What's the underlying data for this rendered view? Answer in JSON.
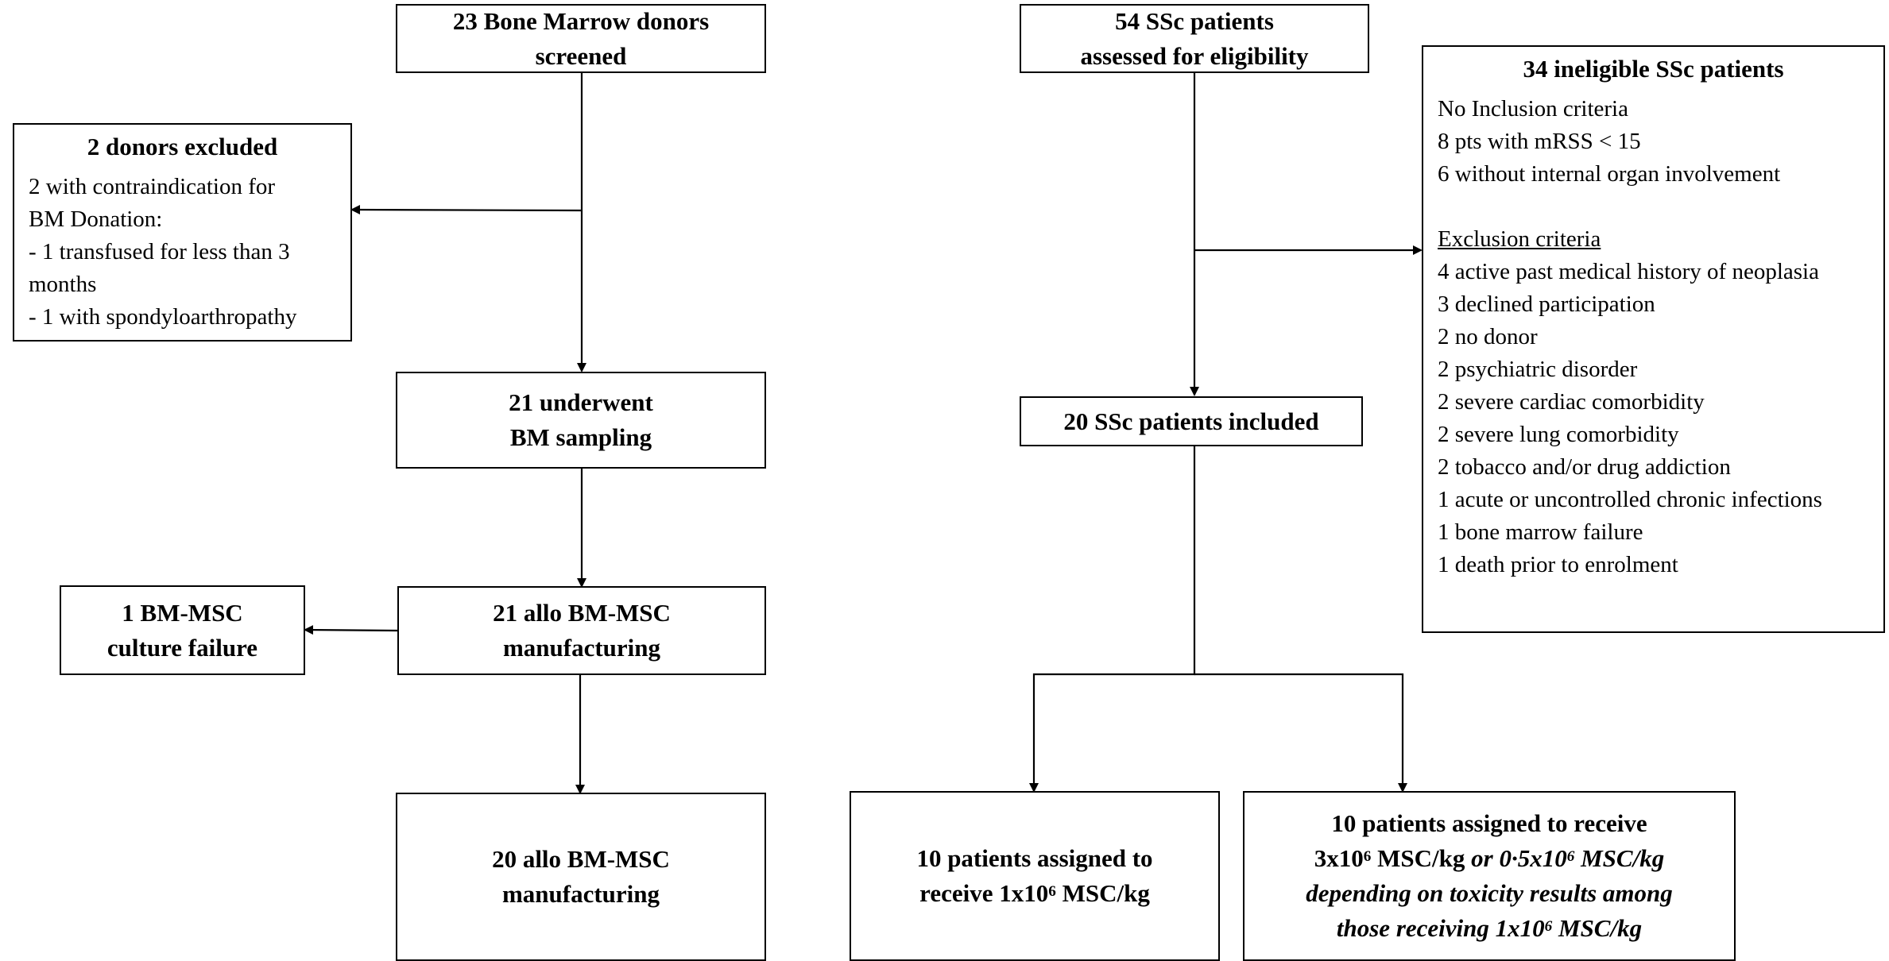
{
  "donor_arm": {
    "screened": [
      "23 Bone Marrow donors",
      "screened"
    ],
    "excluded_title": "2 donors excluded",
    "excluded_lines": [
      "2  with contraindication for",
      "BM Donation:",
      "- 1 transfused for less than 3",
      "months",
      "- 1 with spondyloarthropathy"
    ],
    "sampling": [
      "21 underwent",
      "BM sampling"
    ],
    "culture_failure": [
      "1 BM-MSC",
      "culture failure"
    ],
    "manufacturing_21": [
      "21 allo BM-MSC",
      "manufacturing"
    ],
    "manufacturing_20": [
      "20 allo BM-MSC",
      "manufacturing"
    ]
  },
  "patient_arm": {
    "assessed": [
      "54 SSc patients",
      "assessed for eligibility"
    ],
    "ineligible_title": "34 ineligible SSc patients",
    "inclusion_heading": "No Inclusion criteria",
    "inclusion_items": [
      "8 pts with mRSS < 15",
      "6 without internal organ involvement"
    ],
    "exclusion_heading": "Exclusion criteria",
    "exclusion_items": [
      "4 active past medical history of neoplasia",
      "3 declined participation",
      "2 no donor",
      "2 psychiatric disorder",
      "2 severe cardiac comorbidity",
      "2 severe lung comorbidity",
      "2 tobacco and/or drug addiction",
      "1 acute or uncontrolled chronic infections",
      "1 bone marrow failure",
      "1 death prior to enrolment"
    ],
    "included": "20 SSc patients included",
    "group_a": {
      "line1": "10 patients assigned to",
      "line2_pre": "receive 1x10",
      "line2_sup": "6",
      "line2_post": " MSC/kg"
    },
    "group_b": {
      "line1": "10 patients assigned to receive",
      "line2_pre": "3x10",
      "line2_sup": "6",
      "line2_mid": " MSC/kg ",
      "line2_it_pre": "or 0·5x10",
      "line2_it_sup": "6",
      "line2_it_post": " MSC/kg",
      "line3": "depending on toxicity results among",
      "line4_pre": "those receiving 1x10",
      "line4_sup": "6",
      "line4_post": " MSC/kg"
    }
  }
}
